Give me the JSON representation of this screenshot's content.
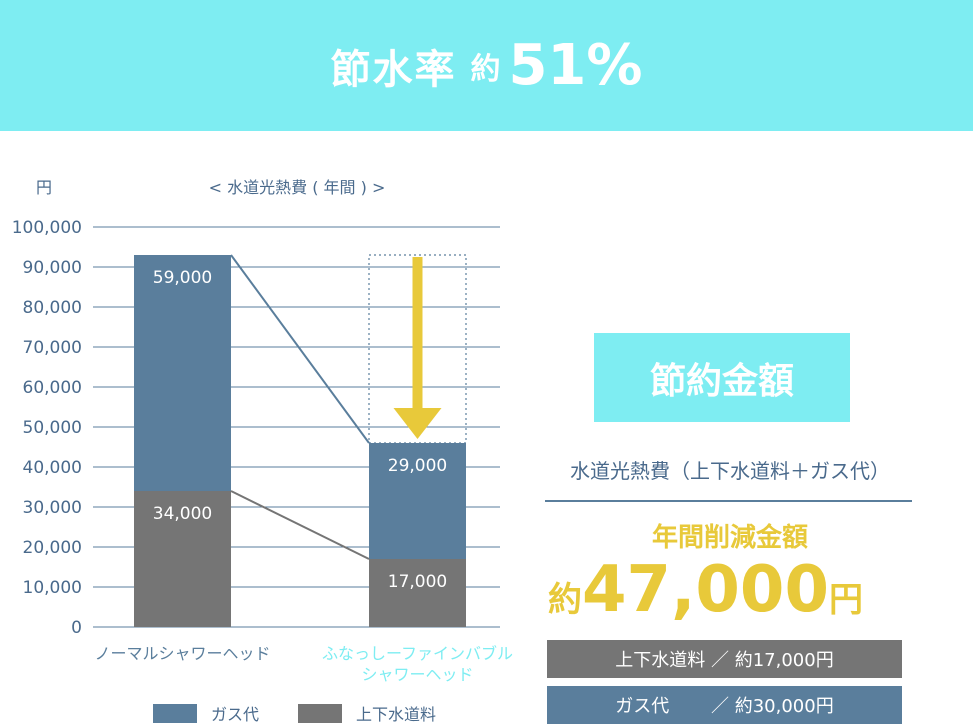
{
  "banner": {
    "label": "節水率",
    "prefix": "約",
    "value": "51%"
  },
  "chart_data": {
    "type": "bar",
    "stacked": true,
    "title": "< 水道光熱費 ( 年間 ) >",
    "ylabel": "円",
    "ylim": [
      0,
      100000
    ],
    "yticks": [
      "0",
      "10,000",
      "20,000",
      "30,000",
      "40,000",
      "50,000",
      "60,000",
      "70,000",
      "80,000",
      "90,000",
      "100,000"
    ],
    "grid": true,
    "legend_position": "bottom",
    "categories": [
      [
        "ノーマルシャワーヘッド"
      ],
      [
        "ふなっしーファインバブル",
        "シャワーヘッド"
      ]
    ],
    "series": [
      {
        "name": "上下水道料",
        "color": "#757575",
        "values": [
          34000,
          17000
        ],
        "labels": [
          "34,000",
          "17,000"
        ]
      },
      {
        "name": "ガス代",
        "color": "#5a7e9c",
        "values": [
          59000,
          29000
        ],
        "labels": [
          "59,000",
          "29,000"
        ]
      }
    ],
    "legend": [
      {
        "name": "ガス代",
        "color": "#5a7e9c"
      },
      {
        "name": "上下水道料",
        "color": "#757575"
      }
    ],
    "category_label_colors": [
      "#5a7e9c",
      "#7eedf2"
    ],
    "arrow_color": "#e8c93a"
  },
  "savings": {
    "title": "節約金額",
    "cost_label": "水道光熱費（上下水道料＋ガス代）",
    "annual_label": "年間削減金額",
    "prefix": "約",
    "amount": "47,000",
    "suffix": "円",
    "details": [
      {
        "label": "上下水道料 ／ 約17,000円"
      },
      {
        "label": "ガス代　　 ／ 約30,000円"
      }
    ]
  }
}
